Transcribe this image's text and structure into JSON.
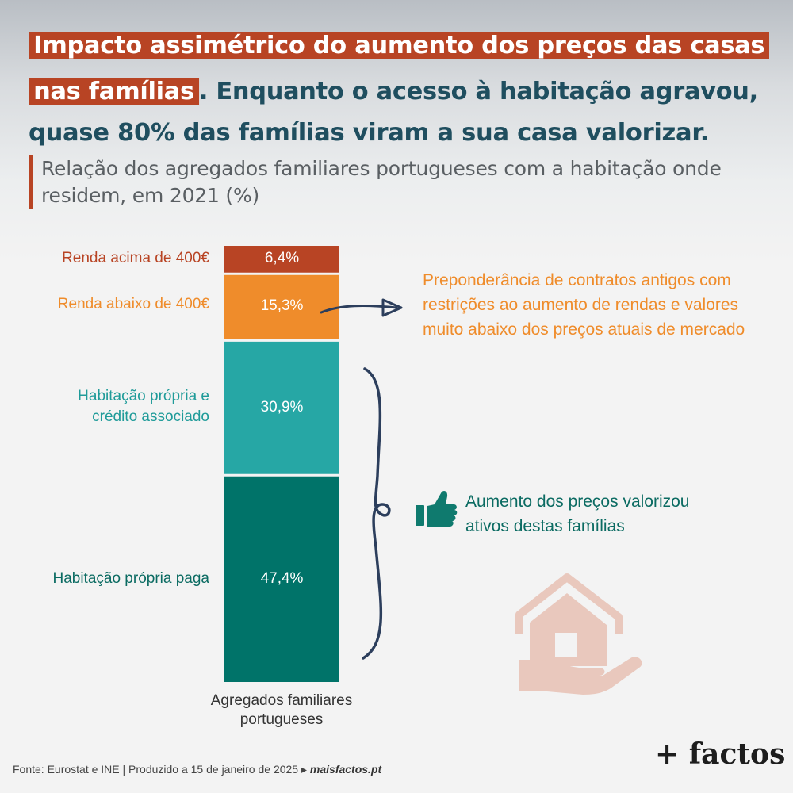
{
  "title": {
    "line1_highlight": "Impacto assimétrico do aumento dos preços das casas",
    "line2_highlight": "nas famílias",
    "line2_rest": ". Enquanto o acesso à habitação agravou,",
    "line3": "quase 80% das famílias viram a sua casa valorizar."
  },
  "subtitle": "Relação dos agregados familiares portugueses com a habitação onde residem, em 2021 (%)",
  "chart_data": {
    "type": "bar",
    "stacked": true,
    "categories": [
      "Agregados familiares portugueses"
    ],
    "xlabel": "Agregados familiares portugueses",
    "series": [
      {
        "name": "Renda acima de 400€",
        "value": 6.4,
        "label": "6,4%",
        "color": "#b84424"
      },
      {
        "name": "Renda abaixo de 400€",
        "value": 15.3,
        "label": "15,3%",
        "color": "#ef8c2b"
      },
      {
        "name": "Habitação própria e crédito associado",
        "value": 30.9,
        "label": "30,9%",
        "color": "#26a7a5"
      },
      {
        "name": "Habitação própria paga",
        "value": 47.4,
        "label": "47,4%",
        "color": "#007369"
      }
    ],
    "annotations": [
      "Preponderância de contratos antigos com restrições ao aumento de rendas e valores muito abaixo dos preços atuais de mercado",
      "Aumento dos preços valorizou ativos destas famílias"
    ]
  },
  "notes": {
    "rent_note_lines": [
      "Preponderância de contratos antigos com",
      "restrições ao aumento de rendas e valores",
      "muito abaixo dos preços atuais de mercado"
    ],
    "owner_note_lines": [
      "Aumento dos preços valorizou",
      "ativos destas famílias"
    ]
  },
  "labels": {
    "cat1": "Renda acima de 400€",
    "cat2": "Renda abaixo de 400€",
    "cat3_line1": "Habitação própria e",
    "cat3_line2": "crédito associado",
    "cat4": "Habitação própria paga",
    "xlabel_line1": "Agregados familiares",
    "xlabel_line2": "portugueses"
  },
  "footer": {
    "source": "Fonte: Eurostat e INE | Produzido a 15 de janeiro de 2025 ▸ ",
    "site": "maisfactos.pt"
  },
  "logo": "+ factos",
  "icons": [
    "thumbs-up-icon",
    "house-hand-icon",
    "arrow-icon",
    "brace-icon"
  ],
  "colors": {
    "accent": "#b84424",
    "orange": "#ef8c2b",
    "teal": "#26a7a5",
    "dark_teal": "#007369",
    "title_dark": "#1f4e5f"
  }
}
